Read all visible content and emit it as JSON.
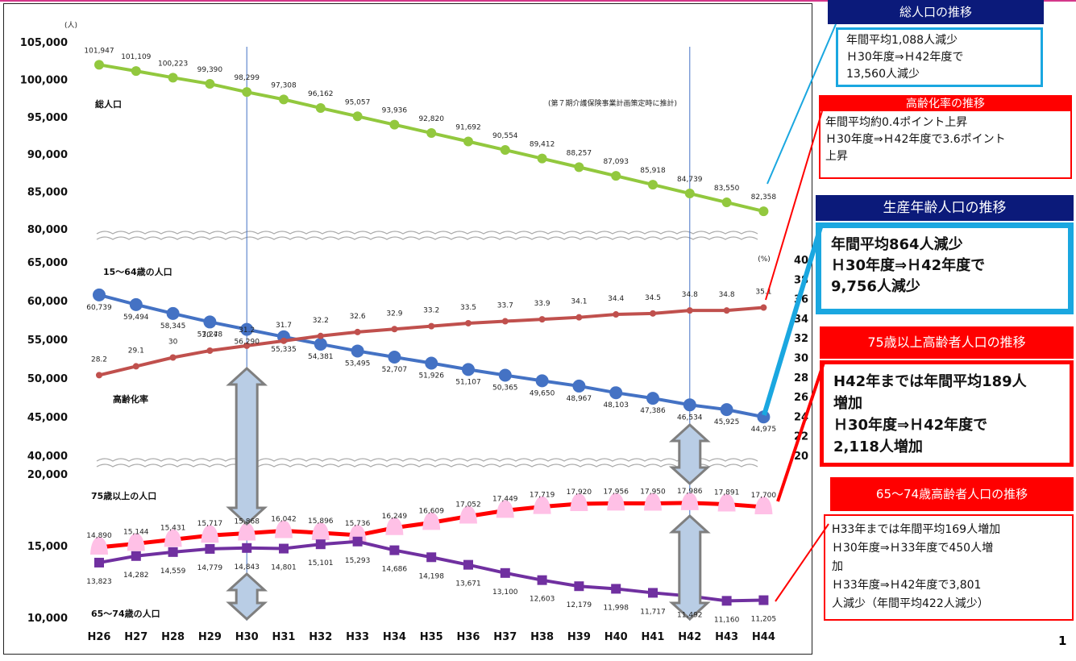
{
  "chart_data": {
    "type": "line",
    "categories": [
      "H26",
      "H27",
      "H28",
      "H29",
      "H30",
      "H31",
      "H32",
      "H33",
      "H34",
      "H35",
      "H36",
      "H37",
      "H38",
      "H39",
      "H40",
      "H41",
      "H42",
      "H43",
      "H44"
    ],
    "y_unit": "(人)",
    "right_unit": "(%)",
    "note": "(第７期介護保険事業計画策定時に推計)",
    "y_ticks": [
      "105,000",
      "100,000",
      "95,000",
      "90,000",
      "85,000",
      "80,000",
      "65,000",
      "60,000",
      "55,000",
      "50,000",
      "45,000",
      "40,000",
      "20,000",
      "15,000",
      "10,000"
    ],
    "right_ticks": [
      "40",
      "38",
      "36",
      "34",
      "32",
      "30",
      "28",
      "26",
      "24",
      "22",
      "20"
    ],
    "series": [
      {
        "name": "総人口",
        "color": "#92c83e",
        "values": [
          101947,
          101109,
          100223,
          99390,
          98299,
          97308,
          96162,
          95057,
          93936,
          92820,
          91692,
          90554,
          89412,
          88257,
          87093,
          85918,
          84739,
          83550,
          82358
        ],
        "labels": [
          "101,947",
          "101,109",
          "100,223",
          "99,390",
          "98,299",
          "97,308",
          "96,162",
          "95,057",
          "93,936",
          "92,820",
          "91,692",
          "90,554",
          "89,412",
          "88,257",
          "87,093",
          "85,918",
          "84,739",
          "83,550",
          "82,358"
        ]
      },
      {
        "name": "15～64歳の人口",
        "color": "#4472c4",
        "values": [
          60739,
          59494,
          58345,
          57248,
          56290,
          55335,
          54381,
          53495,
          52707,
          51926,
          51107,
          50365,
          49650,
          48967,
          48103,
          47386,
          46534,
          45925,
          44975
        ],
        "labels": [
          "60,739",
          "59,494",
          "58,345",
          "57,248",
          "56,290",
          "55,335",
          "54,381",
          "53,495",
          "52,707",
          "51,926",
          "51,107",
          "50,365",
          "49,650",
          "48,967",
          "48,103",
          "47,386",
          "46,534",
          "45,925",
          "44,975"
        ]
      },
      {
        "name": "高齢化率",
        "color": "#c0504d",
        "axis": "right",
        "values": [
          28.2,
          29.1,
          30,
          30.7,
          31.2,
          31.7,
          32.2,
          32.6,
          32.9,
          33.2,
          33.5,
          33.7,
          33.9,
          34.1,
          34.4,
          34.5,
          34.8,
          34.8,
          35.1
        ],
        "labels": [
          "28.2",
          "29.1",
          "30",
          "30.7",
          "31.2",
          "31.7",
          "32.2",
          "32.6",
          "32.9",
          "33.2",
          "33.5",
          "33.7",
          "33.9",
          "34.1",
          "34.4",
          "34.5",
          "34.8",
          "34.8",
          "35.1"
        ]
      },
      {
        "name": "75歳以上の人口",
        "color": "#ff0000",
        "marker_color": "#ffc0e6",
        "values": [
          14890,
          15144,
          15431,
          15717,
          15868,
          16042,
          15896,
          15736,
          16249,
          16609,
          17052,
          17449,
          17719,
          17920,
          17956,
          17950,
          17986,
          17891,
          17700
        ],
        "labels": [
          "14,890",
          "15,144",
          "15,431",
          "15,717",
          "15,868",
          "16,042",
          "15,896",
          "15,736",
          "16,249",
          "16,609",
          "17,052",
          "17,449",
          "17,719",
          "17,920",
          "17,956",
          "17,950",
          "17,986",
          "17,891",
          "17,700"
        ]
      },
      {
        "name": "65～74歳の人口",
        "color": "#7030a0",
        "values": [
          13823,
          14282,
          14559,
          14779,
          14843,
          14801,
          15101,
          15293,
          14686,
          14198,
          13671,
          13100,
          12603,
          12179,
          11998,
          11717,
          11492,
          11160,
          11205
        ],
        "labels": [
          "13,823",
          "14,282",
          "14,559",
          "14,779",
          "14,843",
          "14,801",
          "15,101",
          "15,293",
          "14,686",
          "14,198",
          "13,671",
          "13,100",
          "12,603",
          "12,179",
          "11,998",
          "11,717",
          "11,492",
          "11,160",
          "11,205"
        ]
      }
    ]
  },
  "callouts": [
    {
      "title": "総人口の推移",
      "body": [
        "年間平均1,088人減少",
        "Ｈ30年度⇒Ｈ42年度で",
        "13,560人減少"
      ]
    },
    {
      "title": "高齢化率の推移",
      "body": [
        "年間平均約0.4ポイント上昇",
        "Ｈ30年度⇒Ｈ42年度で3.6ポイント",
        "上昇"
      ]
    },
    {
      "title": "生産年齢人口の推移",
      "body": [
        "年間平均864人減少",
        "Ｈ30年度⇒Ｈ42年度で",
        "9,756人減少"
      ]
    },
    {
      "title": "75歳以上高齢者人口の推移",
      "body": [
        "H42年までは年間平均189人",
        "増加",
        "Ｈ30年度⇒Ｈ42年度で",
        "2,118人増加"
      ]
    },
    {
      "title": "65～74歳高齢者人口の推移",
      "body": [
        "H33年までは年間平均169人増加",
        "Ｈ30年度⇒Ｈ33年度で450人増",
        "加",
        "Ｈ33年度⇒Ｈ42年度で3,801",
        "人減少（年間平均422人減少）"
      ]
    }
  ],
  "page_number": "1"
}
